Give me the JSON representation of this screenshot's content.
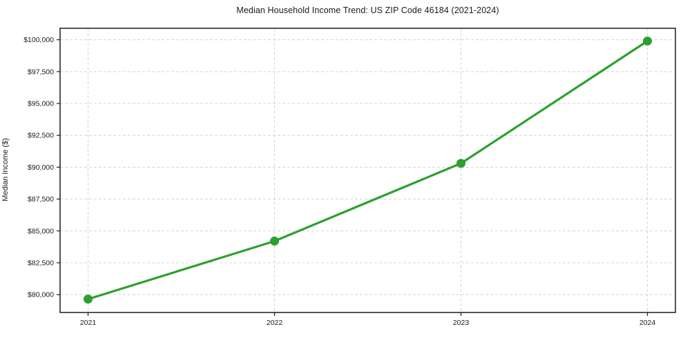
{
  "page": {
    "background": "#ffffff",
    "text_color": "#1a1a1a"
  },
  "chart_data": {
    "type": "line",
    "title": "Median Household Income Trend: US ZIP Code 46184 (2021-2024)",
    "xlabel": "",
    "ylabel": "Median Income ($)",
    "x": [
      2021,
      2022,
      2023,
      2024
    ],
    "x_tick_labels": [
      "2021",
      "2022",
      "2023",
      "2024"
    ],
    "series": [
      {
        "name": "Median Household Income",
        "values": [
          79650,
          84200,
          90300,
          99900
        ],
        "color": "#2ca02c",
        "marker": "circle",
        "marker_size": 6.5,
        "line_width": 3.2
      }
    ],
    "y_ticks": [
      80000,
      82500,
      85000,
      87500,
      90000,
      92500,
      95000,
      97500,
      100000
    ],
    "y_tick_labels": [
      "$80,000",
      "$82,500",
      "$85,000",
      "$87,500",
      "$90,000",
      "$92,500",
      "$95,000",
      "$97,500",
      "$100,000"
    ],
    "xlim": [
      2020.85,
      2024.15
    ],
    "ylim": [
      78600,
      100900
    ],
    "grid": true,
    "grid_style": "dashed",
    "grid_color": "#d4d4d4",
    "axis_color": "#1a1a1a",
    "tick_label_color": "#1a1a1a",
    "legend": "none"
  }
}
